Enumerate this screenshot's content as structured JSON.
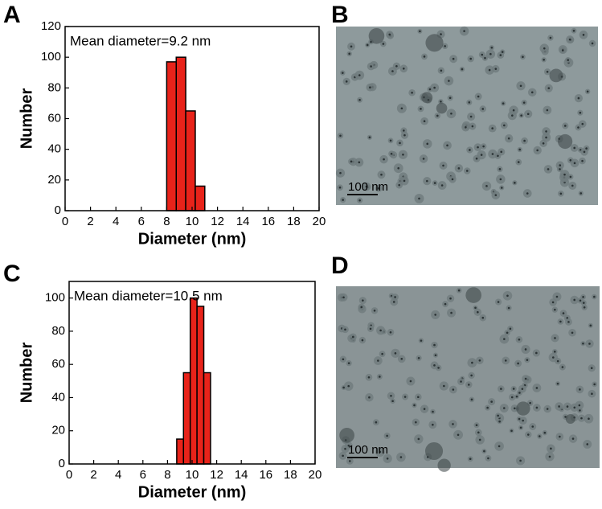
{
  "panel_labels": [
    "A",
    "B",
    "C",
    "D"
  ],
  "chart_data": [
    {
      "type": "histogram",
      "annotation": "Mean diameter=9.2 nm",
      "x_label": "Diameter (nm)",
      "y_label": "Number",
      "bins": [
        8,
        8.75,
        9.5,
        10.25,
        11
      ],
      "values": [
        97,
        100,
        65,
        16
      ],
      "color": "#e8231a",
      "xlim": [
        0,
        20
      ],
      "xticks": [
        0,
        2,
        4,
        6,
        8,
        10,
        12,
        14,
        16,
        18,
        20
      ],
      "ylim": [
        0,
        120
      ],
      "yticks": [
        0,
        20,
        40,
        60,
        80,
        100,
        120
      ]
    },
    {
      "type": "histogram",
      "annotation": "Mean diameter=10.5 nm",
      "x_label": "Diameter (nm)",
      "y_label": "Number",
      "bins": [
        8.75,
        9.3,
        9.85,
        10.4,
        10.95,
        11.5
      ],
      "values": [
        15,
        55,
        100,
        95,
        55
      ],
      "color": "#e8231a",
      "xlim": [
        0,
        20
      ],
      "xticks": [
        0,
        2,
        4,
        6,
        8,
        10,
        12,
        14,
        16,
        18,
        20
      ],
      "ylim": [
        0,
        110
      ],
      "yticks": [
        0,
        20,
        40,
        60,
        80,
        100
      ]
    }
  ],
  "images": [
    {
      "scale_bar": "100 nm"
    },
    {
      "scale_bar": "100 nm"
    }
  ]
}
